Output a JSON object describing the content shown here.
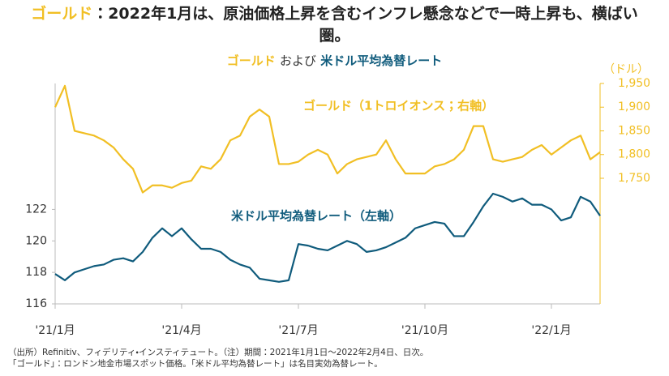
{
  "chart_data": {
    "type": "line",
    "title": [
      "ゴールド",
      "：2022年1月は、原油価格上昇を含むインフレ懸念などで一時上昇も、横ばい圏。"
    ],
    "subtitle": [
      "ゴールド",
      "および",
      "米ドル平均為替レート"
    ],
    "y2_unit": "（ドル）",
    "footnotes": [
      "（出所）Refinitiv、フィデリティ・インスティテュート。（注）期間：2021年1月1日～2022年2月4日、日次。",
      "「ゴールド」：ロンドン地金市場スポット価格。「米ドル平均為替レート」は名目実効為替レート。"
    ],
    "categories": [
      "'21/1月",
      null,
      null,
      null,
      null,
      null,
      null,
      null,
      null,
      null,
      null,
      null,
      null,
      "'21/4月",
      null,
      null,
      null,
      null,
      null,
      null,
      null,
      null,
      null,
      null,
      null,
      "'21/7月",
      null,
      null,
      null,
      null,
      null,
      null,
      null,
      null,
      null,
      null,
      null,
      null,
      "'21/10月",
      null,
      null,
      null,
      null,
      null,
      null,
      null,
      null,
      null,
      null,
      null,
      null,
      "'22/1月",
      null,
      null,
      null,
      null,
      null
    ],
    "series": [
      {
        "name": "ゴールド（1トロイオンス；右軸）",
        "color": "#f1bf24",
        "axis": "y2",
        "values": [
          1900,
          1945,
          1850,
          1845,
          1840,
          1830,
          1815,
          1790,
          1770,
          1720,
          1735,
          1735,
          1730,
          1740,
          1745,
          1775,
          1770,
          1790,
          1830,
          1840,
          1880,
          1895,
          1880,
          1780,
          1780,
          1785,
          1800,
          1810,
          1800,
          1760,
          1780,
          1790,
          1795,
          1800,
          1830,
          1790,
          1760,
          1760,
          1760,
          1775,
          1780,
          1790,
          1810,
          1860,
          1860,
          1790,
          1785,
          1790,
          1795,
          1810,
          1820,
          1800,
          1815,
          1830,
          1840,
          1790,
          1805
        ]
      },
      {
        "name": "米ドル平均為替レート（左軸）",
        "color": "#0f5b7c",
        "values": [
          117.9,
          117.5,
          118.0,
          118.2,
          118.4,
          118.5,
          118.8,
          118.9,
          118.7,
          119.3,
          120.2,
          120.8,
          120.3,
          120.8,
          120.1,
          119.5,
          119.5,
          119.3,
          118.8,
          118.5,
          118.3,
          117.6,
          117.5,
          117.4,
          117.5,
          119.8,
          119.7,
          119.5,
          119.4,
          119.7,
          120.0,
          119.8,
          119.3,
          119.4,
          119.6,
          119.9,
          120.2,
          120.8,
          121.0,
          121.2,
          121.1,
          120.3,
          120.3,
          121.2,
          122.2,
          123.0,
          122.8,
          122.5,
          122.7,
          122.3,
          122.3,
          122.0,
          121.3,
          121.5,
          122.8,
          122.5,
          121.6
        ]
      }
    ],
    "ylim": [
      116,
      130
    ],
    "yticks": [
      116,
      118,
      120,
      122
    ],
    "y2lim": [
      1485,
      1950
    ],
    "y2ticks": [
      {
        "value": 1750,
        "label": "1,750"
      },
      {
        "value": 1800,
        "label": "1,800"
      },
      {
        "value": 1850,
        "label": "1,850"
      },
      {
        "value": 1900,
        "label": "1,900"
      },
      {
        "value": 1950,
        "label": "1,950"
      }
    ]
  }
}
